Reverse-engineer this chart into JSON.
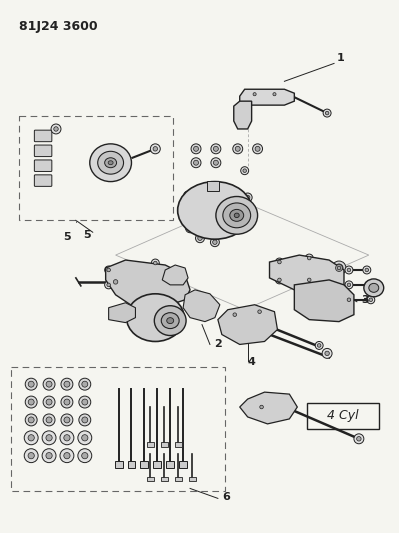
{
  "title_code": "81J24 3600",
  "label_4cyl": "4 Cyl",
  "bg_color": "#f5f5f0",
  "line_color": "#222222",
  "fig_width": 3.99,
  "fig_height": 5.33,
  "dpi": 100,
  "title_fontsize": 9,
  "label_fontsize": 8
}
